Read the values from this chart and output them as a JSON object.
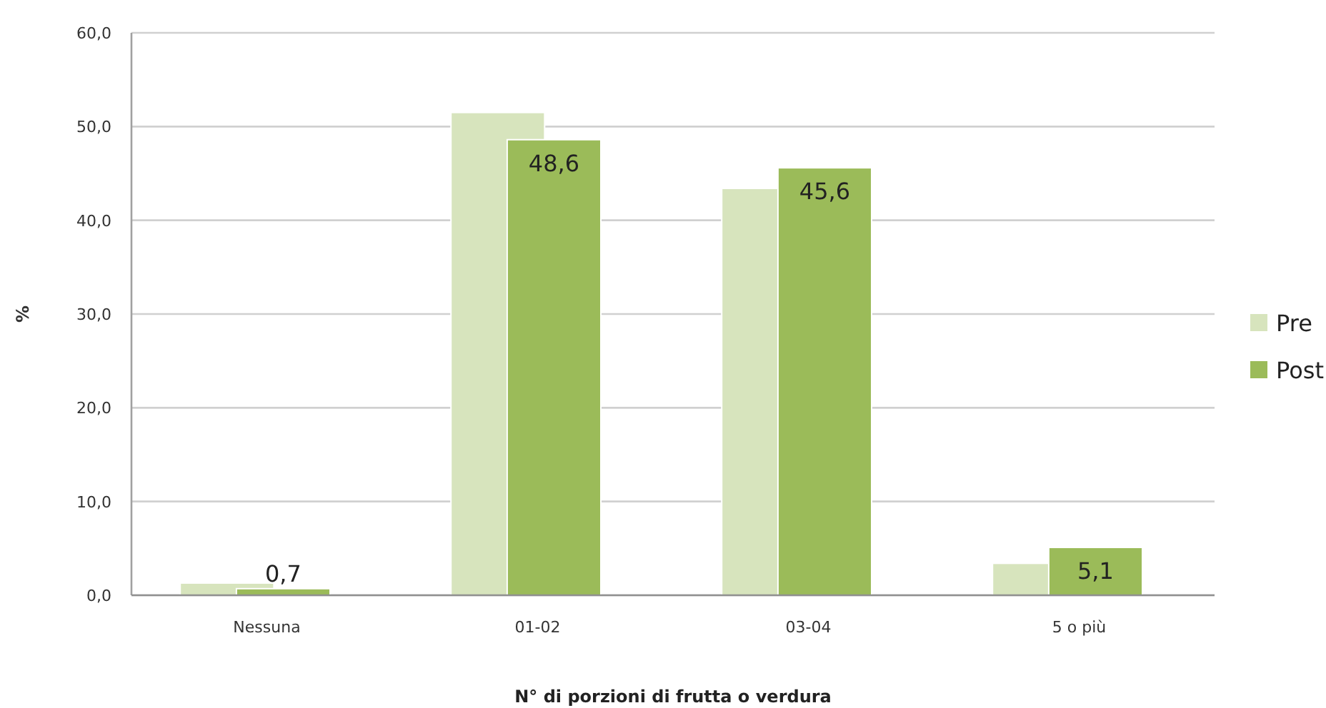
{
  "chart_data": {
    "type": "bar",
    "xlabel": "N° di porzioni di frutta o verdura",
    "ylabel": "%",
    "categories": [
      "Nessuna",
      "01-02",
      "03-04",
      "5 o più"
    ],
    "series": [
      {
        "name": "Pre",
        "color": "#d7e4bd",
        "values": [
          1.3,
          51.5,
          43.4,
          3.4
        ]
      },
      {
        "name": "Post",
        "color": "#9bbb59",
        "values": [
          0.7,
          48.6,
          45.6,
          5.1
        ],
        "value_labels": [
          "0,7",
          "48,6",
          "45,6",
          "5,1"
        ]
      }
    ],
    "ylim": [
      0,
      60
    ],
    "yticks": [
      {
        "value": 0,
        "label": "0,0"
      },
      {
        "value": 10,
        "label": "10,0"
      },
      {
        "value": 20,
        "label": "20,0"
      },
      {
        "value": 30,
        "label": "30,0"
      },
      {
        "value": 40,
        "label": "40,0"
      },
      {
        "value": 50,
        "label": "50,0"
      },
      {
        "value": 60,
        "label": "60,0"
      }
    ],
    "grid": "y",
    "legend": "right"
  }
}
